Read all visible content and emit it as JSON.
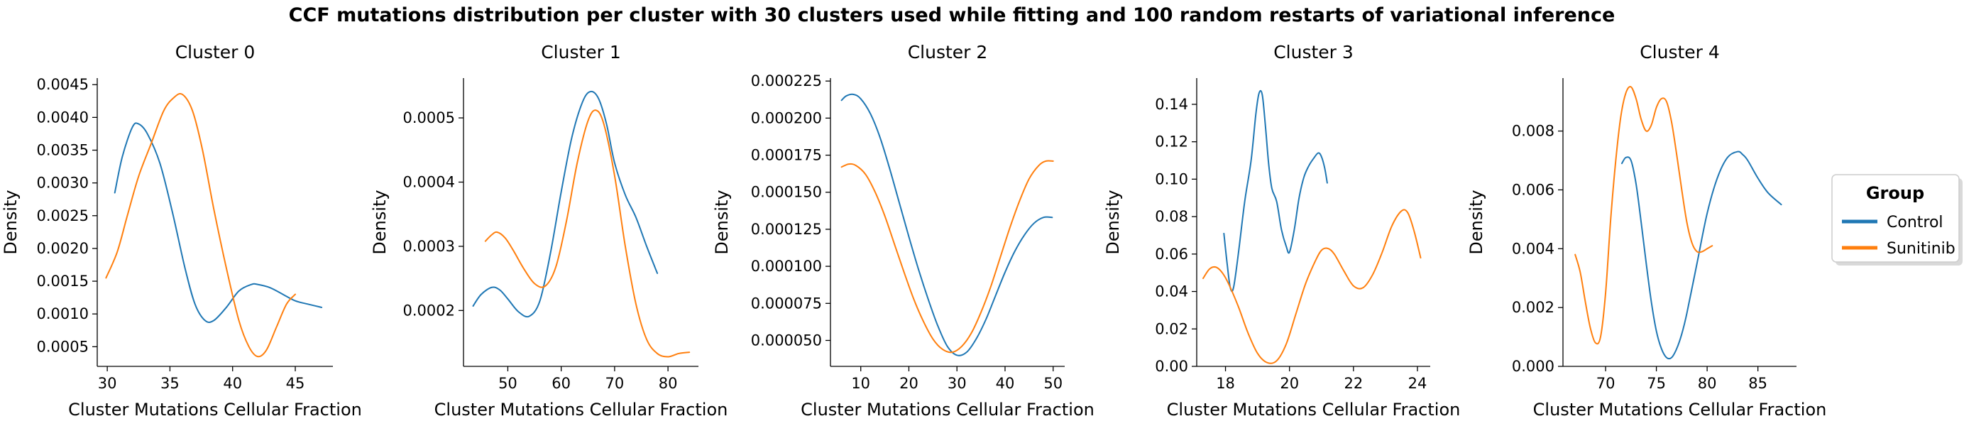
{
  "figure": {
    "title": "CCF mutations distribution per cluster with 30 clusters used while fitting and 100 random restarts of variational inference"
  },
  "legend": {
    "title": "Group",
    "placement": "right",
    "entries": [
      {
        "label": "Control",
        "color": "#1f77b4"
      },
      {
        "label": "Sunitinib",
        "color": "#ff7f0e"
      }
    ]
  },
  "chart_data": [
    {
      "type": "line",
      "title": "Cluster 0",
      "xlabel": "Cluster Mutations Cellular Fraction",
      "ylabel": "Density",
      "xlim": [
        29.2,
        48.0
      ],
      "ylim": [
        0.0002,
        0.0046
      ],
      "xticks": [
        30,
        35,
        40,
        45
      ],
      "yticks": [
        0.0005,
        0.001,
        0.0015,
        0.002,
        0.0025,
        0.003,
        0.0035,
        0.004,
        0.0045
      ],
      "yticklabels": [
        "0.0005",
        "0.0010",
        "0.0015",
        "0.0020",
        "0.0025",
        "0.0030",
        "0.0035",
        "0.0040",
        "0.0045"
      ],
      "series": [
        {
          "name": "Control",
          "color": "#1f77b4",
          "x": [
            30.6,
            31.2,
            32.0,
            32.5,
            33.2,
            34.2,
            35.2,
            36.2,
            37.0,
            37.8,
            38.5,
            39.5,
            40.5,
            41.5,
            42.0,
            43.0,
            44.0,
            45.0,
            46.0,
            47.1
          ],
          "y": [
            0.00285,
            0.0034,
            0.00385,
            0.0039,
            0.00375,
            0.0033,
            0.00255,
            0.0017,
            0.00115,
            0.0009,
            0.0009,
            0.0011,
            0.00135,
            0.00145,
            0.00145,
            0.0014,
            0.0013,
            0.0012,
            0.00115,
            0.0011
          ]
        },
        {
          "name": "Sunitinib",
          "color": "#ff7f0e",
          "x": [
            29.9,
            30.8,
            31.6,
            32.5,
            33.5,
            34.5,
            35.3,
            36.0,
            36.8,
            37.6,
            38.5,
            39.5,
            40.5,
            41.3,
            42.0,
            42.7,
            43.5,
            44.3,
            45.0
          ],
          "y": [
            0.00155,
            0.00195,
            0.0025,
            0.0031,
            0.0036,
            0.0041,
            0.0043,
            0.00435,
            0.0041,
            0.0035,
            0.0026,
            0.0017,
            0.0009,
            0.0005,
            0.00035,
            0.00045,
            0.0008,
            0.00115,
            0.0013
          ]
        }
      ]
    },
    {
      "type": "line",
      "title": "Cluster 1",
      "xlabel": "Cluster Mutations Cellular Fraction",
      "ylabel": "Density",
      "xlim": [
        41.7,
        85.7
      ],
      "ylim": [
        0.000113,
        0.000562
      ],
      "xticks": [
        50,
        60,
        70,
        80
      ],
      "yticks": [
        0.0002,
        0.0003,
        0.0004,
        0.0005
      ],
      "yticklabels": [
        "0.0002",
        "0.0003",
        "0.0004",
        "0.0005"
      ],
      "series": [
        {
          "name": "Control",
          "color": "#1f77b4",
          "x": [
            43.5,
            45.0,
            47.0,
            48.5,
            50.0,
            52.0,
            54.0,
            56.0,
            58.0,
            60.0,
            62.0,
            64.0,
            65.5,
            67.0,
            68.5,
            70.0,
            72.0,
            74.0,
            76.0,
            78.0
          ],
          "y": [
            0.000207,
            0.000225,
            0.000236,
            0.000232,
            0.000218,
            0.000198,
            0.000191,
            0.000215,
            0.00029,
            0.000385,
            0.00047,
            0.000525,
            0.000541,
            0.00053,
            0.00049,
            0.00043,
            0.00038,
            0.000345,
            0.0003,
            0.000258
          ]
        },
        {
          "name": "Sunitinib",
          "color": "#ff7f0e",
          "x": [
            45.8,
            47.0,
            48.0,
            49.5,
            51.0,
            53.0,
            55.0,
            57.0,
            59.0,
            61.0,
            63.0,
            65.0,
            66.5,
            68.0,
            70.0,
            72.0,
            74.0,
            76.0,
            78.0,
            80.0,
            82.0,
            84.0
          ],
          "y": [
            0.000308,
            0.000318,
            0.000322,
            0.000313,
            0.000294,
            0.000265,
            0.000242,
            0.000238,
            0.000268,
            0.00034,
            0.00043,
            0.000495,
            0.000512,
            0.00049,
            0.00041,
            0.0003,
            0.00021,
            0.000155,
            0.000133,
            0.000128,
            0.000133,
            0.000135
          ]
        }
      ]
    },
    {
      "type": "line",
      "title": "Cluster 2",
      "xlabel": "Cluster Mutations Cellular Fraction",
      "ylabel": "Density",
      "xlim": [
        3.7,
        52.4
      ],
      "ylim": [
        3.25e-05,
        0.000227
      ],
      "xticks": [
        10,
        20,
        30,
        40,
        50
      ],
      "yticks": [
        5e-05,
        7.5e-05,
        0.0001,
        0.000125,
        0.00015,
        0.000175,
        0.0002,
        0.000225
      ],
      "yticklabels": [
        "0.000050",
        "0.000075",
        "0.000100",
        "0.000125",
        "0.000150",
        "0.000175",
        "0.000200",
        "0.000225"
      ],
      "series": [
        {
          "name": "Control",
          "color": "#1f77b4",
          "x": [
            6.0,
            7.0,
            8.5,
            10.0,
            12.0,
            14.0,
            16.0,
            18.0,
            20.0,
            22.0,
            24.0,
            26.0,
            28.0,
            30.0,
            32.0,
            34.0,
            36.0,
            38.0,
            40.0,
            42.0,
            44.0,
            46.0,
            48.0,
            49.8
          ],
          "y": [
            0.000212,
            0.000215,
            0.000216,
            0.000213,
            0.000203,
            0.000187,
            0.000166,
            0.000143,
            0.00012,
            9.8e-05,
            7.8e-05,
            6e-05,
            4.6e-05,
            4e-05,
            4.2e-05,
            5.1e-05,
            6.4e-05,
            8e-05,
            9.6e-05,
            0.00011,
            0.000121,
            0.000129,
            0.000133,
            0.000133
          ]
        },
        {
          "name": "Sunitinib",
          "color": "#ff7f0e",
          "x": [
            6.0,
            7.5,
            9.0,
            11.0,
            13.0,
            15.0,
            17.0,
            19.0,
            21.0,
            23.0,
            25.0,
            27.0,
            29.0,
            31.0,
            33.0,
            35.0,
            37.0,
            39.0,
            41.0,
            43.0,
            45.0,
            47.0,
            48.5,
            50.0
          ],
          "y": [
            0.000167,
            0.000169,
            0.000168,
            0.000162,
            0.00015,
            0.000134,
            0.000115,
            9.6e-05,
            7.8e-05,
            6.3e-05,
            5.1e-05,
            4.4e-05,
            4.2e-05,
            4.6e-05,
            5.5e-05,
            6.9e-05,
            8.6e-05,
            0.000106,
            0.000126,
            0.000144,
            0.000159,
            0.000168,
            0.000171,
            0.000171
          ]
        }
      ]
    },
    {
      "type": "line",
      "title": "Cluster 3",
      "xlabel": "Cluster Mutations Cellular Fraction",
      "ylabel": "Density",
      "xlim": [
        17.1,
        24.4
      ],
      "ylim": [
        0.0,
        0.154
      ],
      "xticks": [
        18,
        20,
        22,
        24
      ],
      "yticks": [
        0.0,
        0.02,
        0.04,
        0.06,
        0.08,
        0.1,
        0.12,
        0.14
      ],
      "yticklabels": [
        "0.00",
        "0.02",
        "0.04",
        "0.06",
        "0.08",
        "0.10",
        "0.12",
        "0.14"
      ],
      "series": [
        {
          "name": "Control",
          "color": "#1f77b4",
          "x": [
            17.95,
            18.05,
            18.15,
            18.25,
            18.4,
            18.6,
            18.8,
            18.95,
            19.05,
            19.15,
            19.25,
            19.35,
            19.45,
            19.6,
            19.75,
            19.9,
            20.0,
            20.15,
            20.3,
            20.45,
            20.6,
            20.75,
            20.9,
            21.0,
            21.1,
            21.18
          ],
          "y": [
            0.071,
            0.055,
            0.042,
            0.042,
            0.06,
            0.088,
            0.11,
            0.135,
            0.146,
            0.145,
            0.128,
            0.108,
            0.095,
            0.088,
            0.073,
            0.064,
            0.061,
            0.073,
            0.09,
            0.101,
            0.107,
            0.111,
            0.114,
            0.112,
            0.106,
            0.098
          ]
        },
        {
          "name": "Sunitinib",
          "color": "#ff7f0e",
          "x": [
            17.3,
            17.5,
            17.7,
            17.9,
            18.1,
            18.4,
            18.7,
            19.0,
            19.3,
            19.6,
            19.9,
            20.2,
            20.5,
            20.8,
            21.0,
            21.2,
            21.4,
            21.7,
            22.0,
            22.3,
            22.6,
            22.9,
            23.2,
            23.5,
            23.7,
            23.9,
            24.1
          ],
          "y": [
            0.047,
            0.052,
            0.053,
            0.05,
            0.044,
            0.032,
            0.018,
            0.007,
            0.002,
            0.003,
            0.012,
            0.028,
            0.044,
            0.056,
            0.062,
            0.063,
            0.06,
            0.051,
            0.043,
            0.042,
            0.049,
            0.061,
            0.075,
            0.083,
            0.082,
            0.072,
            0.058
          ]
        }
      ]
    },
    {
      "type": "line",
      "title": "Cluster 4",
      "xlabel": "Cluster Mutations Cellular Fraction",
      "ylabel": "Density",
      "xlim": [
        65.8,
        88.8
      ],
      "ylim": [
        0.0,
        0.0098
      ],
      "xticks": [
        70,
        75,
        80,
        85
      ],
      "yticks": [
        0.0,
        0.002,
        0.004,
        0.006,
        0.008
      ],
      "yticklabels": [
        "0.000",
        "0.002",
        "0.004",
        "0.006",
        "0.008"
      ],
      "series": [
        {
          "name": "Control",
          "color": "#1f77b4",
          "x": [
            71.6,
            72.0,
            72.5,
            73.0,
            73.5,
            74.0,
            74.5,
            75.0,
            75.5,
            76.0,
            76.5,
            77.0,
            77.5,
            78.0,
            79.0,
            80.0,
            81.0,
            82.0,
            83.0,
            83.5,
            84.0,
            85.0,
            86.0,
            87.3
          ],
          "y": [
            0.0069,
            0.0071,
            0.007,
            0.0062,
            0.0049,
            0.0035,
            0.0022,
            0.0012,
            0.0006,
            0.0003,
            0.0003,
            0.0006,
            0.0011,
            0.0018,
            0.0035,
            0.0052,
            0.0064,
            0.0071,
            0.0073,
            0.0072,
            0.007,
            0.0064,
            0.0059,
            0.0055
          ]
        },
        {
          "name": "Sunitinib",
          "color": "#ff7f0e",
          "x": [
            67.0,
            67.5,
            68.0,
            68.5,
            69.0,
            69.5,
            70.0,
            70.5,
            71.0,
            71.5,
            72.0,
            72.5,
            73.0,
            73.5,
            74.0,
            74.5,
            75.0,
            75.5,
            76.0,
            76.5,
            77.0,
            77.5,
            78.0,
            78.5,
            79.0,
            79.5,
            80.0,
            80.5
          ],
          "y": [
            0.0038,
            0.0032,
            0.0022,
            0.0013,
            0.0008,
            0.001,
            0.0025,
            0.005,
            0.007,
            0.0085,
            0.0093,
            0.0095,
            0.0091,
            0.0084,
            0.008,
            0.0082,
            0.0088,
            0.0091,
            0.009,
            0.0083,
            0.0072,
            0.006,
            0.0049,
            0.0042,
            0.0039,
            0.0039,
            0.004,
            0.0041
          ]
        }
      ]
    }
  ]
}
